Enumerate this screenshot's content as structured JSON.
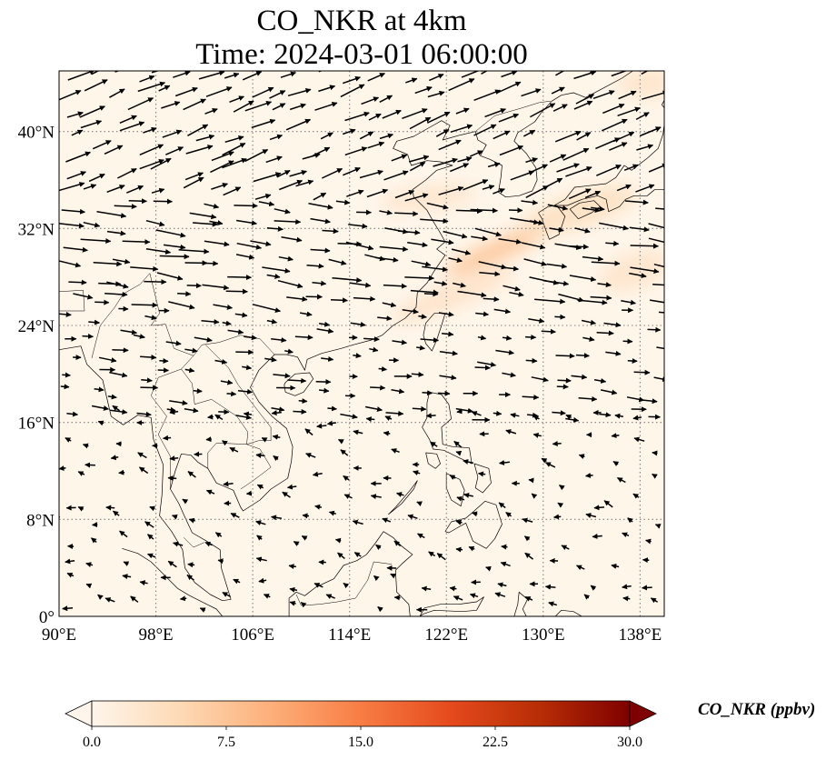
{
  "title": "CO_NKR at 4km",
  "subtitle": "Time: 2024-03-01 06:00:00",
  "map": {
    "lon_range": [
      90,
      140
    ],
    "lat_range": [
      0,
      45
    ],
    "lon_ticks": [
      {
        "value": 90,
        "label": "90°E"
      },
      {
        "value": 98,
        "label": "98°E"
      },
      {
        "value": 106,
        "label": "106°E"
      },
      {
        "value": 114,
        "label": "114°E"
      },
      {
        "value": 122,
        "label": "122°E"
      },
      {
        "value": 130,
        "label": "130°E"
      },
      {
        "value": 138,
        "label": "138°E"
      }
    ],
    "lat_ticks": [
      {
        "value": 0,
        "label": "0°"
      },
      {
        "value": 8,
        "label": "8°N"
      },
      {
        "value": 16,
        "label": "16°N"
      },
      {
        "value": 24,
        "label": "24°N"
      },
      {
        "value": 32,
        "label": "32°N"
      },
      {
        "value": 40,
        "label": "40°N"
      }
    ],
    "gridlines": "dotted",
    "background_color": "#fff6ea",
    "coastline_color": "#000000",
    "vector_color": "#000000"
  },
  "colorbar": {
    "label": "CO_NKR (ppbv)",
    "min": 0,
    "max": 30,
    "ticks": [
      {
        "value": 0,
        "label": "0.0"
      },
      {
        "value": 7.5,
        "label": "7.5"
      },
      {
        "value": 15,
        "label": "15.0"
      },
      {
        "value": 22.5,
        "label": "22.5"
      },
      {
        "value": 30,
        "label": "30.0"
      }
    ],
    "colormap": [
      "#fff5eb",
      "#fdd9b4",
      "#fdaf7a",
      "#f87d44",
      "#e54a1d",
      "#b72d05",
      "#7f0000"
    ],
    "extend": "both"
  },
  "plumes": [
    {
      "lon": 126.2,
      "lat": 30.2,
      "rx_deg": 4.8,
      "ry_deg": 0.9,
      "rotate_deg": -24,
      "value": 7.5
    },
    {
      "lon": 122.5,
      "lat": 26.5,
      "rx_deg": 5.5,
      "ry_deg": 1.0,
      "rotate_deg": -22,
      "value": 3.5
    },
    {
      "lon": 133,
      "lat": 33.5,
      "rx_deg": 5.0,
      "ry_deg": 1.4,
      "rotate_deg": -18,
      "value": 4
    },
    {
      "lon": 120.5,
      "lat": 34.5,
      "rx_deg": 4.0,
      "ry_deg": 1.0,
      "rotate_deg": -8,
      "value": 3
    },
    {
      "lon": 137.5,
      "lat": 28.5,
      "rx_deg": 3.0,
      "ry_deg": 1.5,
      "rotate_deg": -20,
      "value": 3
    },
    {
      "lon": 138.5,
      "lat": 44.0,
      "rx_deg": 2.5,
      "ry_deg": 1.3,
      "rotate_deg": 0,
      "value": 3
    }
  ],
  "wind_regions": [
    {
      "lon": [
        90.5,
        139.5
      ],
      "lat": [
        34.0,
        44.5
      ],
      "step": [
        1.9,
        1.6
      ],
      "dir": -22,
      "len": 24,
      "var": 7
    },
    {
      "lon": [
        90.5,
        139.5
      ],
      "lat": [
        25.0,
        33.8
      ],
      "step": [
        2.0,
        1.5
      ],
      "dir": 8,
      "len": 26,
      "var": 7
    },
    {
      "lon": [
        90.5,
        139.5
      ],
      "lat": [
        16.5,
        24.8
      ],
      "step": [
        2.1,
        1.6
      ],
      "dir": 6,
      "len": 16,
      "var": 6
    },
    {
      "lon": [
        90.5,
        139.5
      ],
      "lat": [
        0.5,
        16.3
      ],
      "step": [
        2.3,
        1.7
      ],
      "dir": 195,
      "len": 9,
      "var": 25
    }
  ]
}
